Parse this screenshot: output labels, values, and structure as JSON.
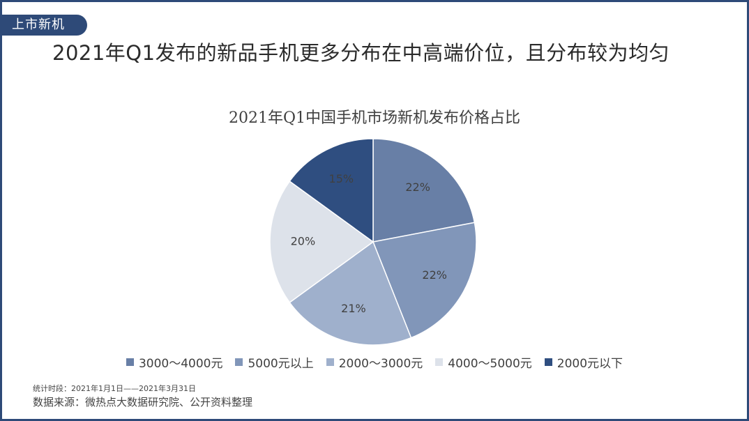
{
  "section_tag": "上市新机",
  "headline": "2021年Q1发布的新品手机更多分布在中高端价位，且分布较为均匀",
  "footnote": {
    "period": "统计时段：2021年1月1日——2021年3月31日",
    "source": "数据来源：微热点大数据研究院、公开资料整理"
  },
  "chart_data": {
    "type": "pie",
    "title": "2021年Q1中国手机市场新机发布价格占比",
    "slices": [
      {
        "name": "3000～4000元",
        "value": 22,
        "label": "22%",
        "color": "#687fa6"
      },
      {
        "name": "5000元以上",
        "value": 22,
        "label": "22%",
        "color": "#8196b9"
      },
      {
        "name": "2000～3000元",
        "value": 21,
        "label": "21%",
        "color": "#9fb0cc"
      },
      {
        "name": "4000～5000元",
        "value": 20,
        "label": "20%",
        "color": "#dde2ea"
      },
      {
        "name": "2000元以下",
        "value": 15,
        "label": "15%",
        "color": "#2f4e80"
      }
    ],
    "legend_position": "bottom"
  }
}
